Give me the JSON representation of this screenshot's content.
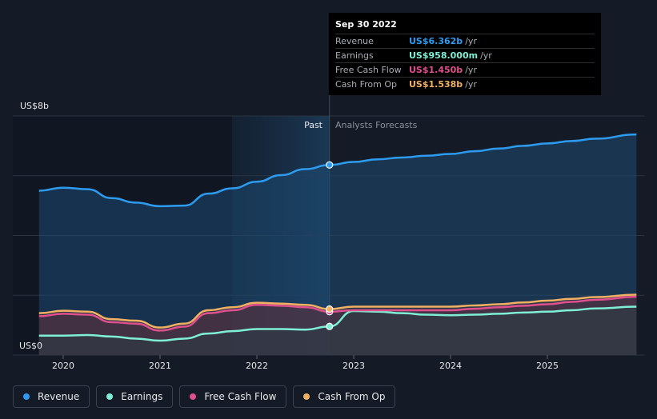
{
  "tooltip": {
    "date": "Sep 30 2022",
    "rows": [
      {
        "label": "Revenue",
        "value": "US$6.362b",
        "unit": "/yr",
        "color": "#2d9cf0"
      },
      {
        "label": "Earnings",
        "value": "US$958.000m",
        "unit": "/yr",
        "color": "#7ff0d6"
      },
      {
        "label": "Free Cash Flow",
        "value": "US$1.450b",
        "unit": "/yr",
        "color": "#e04f8e"
      },
      {
        "label": "Cash From Op",
        "value": "US$1.538b",
        "unit": "/yr",
        "color": "#f2b062"
      }
    ]
  },
  "legend": [
    {
      "label": "Revenue",
      "color": "#2d9cf0"
    },
    {
      "label": "Earnings",
      "color": "#7ff0d6"
    },
    {
      "label": "Free Cash Flow",
      "color": "#e04f8e"
    },
    {
      "label": "Cash From Op",
      "color": "#f2b062"
    }
  ],
  "chart_data": {
    "type": "line",
    "title": "",
    "xlabel": "",
    "ylabel": "",
    "y_top_label": "US$8b",
    "y_bottom_label": "US$0",
    "ylim": [
      0,
      8
    ],
    "xlim": [
      2019.75,
      2025.92
    ],
    "x_ticks": [
      2020,
      2021,
      2022,
      2023,
      2024,
      2025
    ],
    "x_tick_labels": [
      "2020",
      "2021",
      "2022",
      "2023",
      "2024",
      "2025"
    ],
    "y_grid": [
      0,
      2,
      4,
      6,
      8
    ],
    "grid": true,
    "past_label": "Past",
    "forecast_label": "Analysts Forecasts",
    "divider_x": 2022.75,
    "series": [
      {
        "name": "Revenue",
        "color": "#2d9cf0",
        "x": [
          2019.75,
          2020.0,
          2020.25,
          2020.5,
          2020.75,
          2021.0,
          2021.25,
          2021.5,
          2021.75,
          2022.0,
          2022.25,
          2022.5,
          2022.75,
          2023.0,
          2023.25,
          2023.5,
          2023.75,
          2024.0,
          2024.25,
          2024.5,
          2024.75,
          2025.0,
          2025.25,
          2025.5,
          2025.92
        ],
        "values": [
          5.5,
          5.6,
          5.55,
          5.25,
          5.1,
          4.98,
          5.0,
          5.4,
          5.58,
          5.8,
          6.02,
          6.22,
          6.36,
          6.46,
          6.55,
          6.61,
          6.67,
          6.73,
          6.82,
          6.91,
          7.0,
          7.08,
          7.16,
          7.24,
          7.38
        ]
      },
      {
        "name": "Earnings",
        "color": "#7ff0d6",
        "x": [
          2019.75,
          2020.0,
          2020.25,
          2020.5,
          2020.75,
          2021.0,
          2021.25,
          2021.5,
          2021.75,
          2022.0,
          2022.25,
          2022.5,
          2022.75,
          2023.0,
          2023.25,
          2023.5,
          2023.75,
          2024.0,
          2024.25,
          2024.5,
          2024.75,
          2025.0,
          2025.25,
          2025.5,
          2025.92
        ],
        "values": [
          0.65,
          0.65,
          0.67,
          0.62,
          0.55,
          0.48,
          0.55,
          0.72,
          0.8,
          0.87,
          0.87,
          0.85,
          0.958,
          1.47,
          1.45,
          1.4,
          1.35,
          1.33,
          1.35,
          1.38,
          1.42,
          1.45,
          1.5,
          1.56,
          1.62
        ]
      },
      {
        "name": "Free Cash Flow",
        "color": "#e04f8e",
        "x": [
          2019.75,
          2020.0,
          2020.25,
          2020.5,
          2020.75,
          2021.0,
          2021.25,
          2021.5,
          2021.75,
          2022.0,
          2022.25,
          2022.5,
          2022.75,
          2023.0,
          2023.25,
          2023.5,
          2023.75,
          2024.0,
          2024.25,
          2024.5,
          2024.75,
          2025.0,
          2025.25,
          2025.5,
          2025.92
        ],
        "values": [
          1.3,
          1.38,
          1.35,
          1.1,
          1.05,
          0.82,
          0.95,
          1.4,
          1.5,
          1.68,
          1.65,
          1.6,
          1.45,
          1.5,
          1.5,
          1.5,
          1.5,
          1.5,
          1.55,
          1.6,
          1.65,
          1.7,
          1.78,
          1.85,
          1.95
        ]
      },
      {
        "name": "Cash From Op",
        "color": "#f2b062",
        "x": [
          2019.75,
          2020.0,
          2020.25,
          2020.5,
          2020.75,
          2021.0,
          2021.25,
          2021.5,
          2021.75,
          2022.0,
          2022.25,
          2022.5,
          2022.75,
          2023.0,
          2023.25,
          2023.5,
          2023.75,
          2024.0,
          2024.25,
          2024.5,
          2024.75,
          2025.0,
          2025.25,
          2025.5,
          2025.92
        ],
        "values": [
          1.4,
          1.48,
          1.45,
          1.2,
          1.15,
          0.92,
          1.05,
          1.5,
          1.6,
          1.75,
          1.72,
          1.68,
          1.538,
          1.62,
          1.62,
          1.62,
          1.62,
          1.62,
          1.66,
          1.7,
          1.76,
          1.82,
          1.88,
          1.94,
          2.02
        ]
      }
    ]
  }
}
